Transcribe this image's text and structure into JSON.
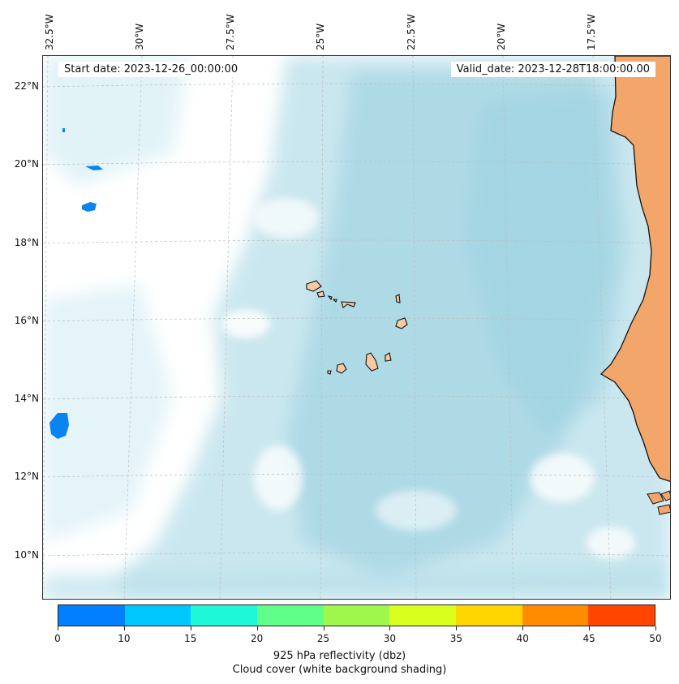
{
  "map": {
    "start_date": "Start date: 2023-12-26_00:00:00",
    "valid_date": "Valid_date: 2023-12-28T18:00:00.00",
    "lon_labels": [
      "32.5°W",
      "30°W",
      "27.5°W",
      "25°W",
      "22.5°W",
      "20°W",
      "17.5°W"
    ],
    "lat_labels": [
      "22°N",
      "20°N",
      "18°N",
      "16°N",
      "14°N",
      "12°N",
      "10°N"
    ],
    "colors": {
      "cloud": "#a9d8e6",
      "land": "#f3a66a",
      "island_fill": "#f7c9a4",
      "reflectivity_blue": "#0a84f0",
      "grid": "#bbbbbb"
    }
  },
  "colorbar": {
    "ticks": [
      "0",
      "10",
      "15",
      "20",
      "25",
      "30",
      "35",
      "40",
      "45",
      "50"
    ],
    "colors": [
      "#0080ff",
      "#00c8ff",
      "#1ef7d8",
      "#60ff8a",
      "#9ef74a",
      "#d8ff1e",
      "#ffd600",
      "#ff8c00",
      "#ff4500"
    ],
    "label_line1": "925 hPa reflectivity (dbz)",
    "label_line2": "Cloud cover (white background shading)"
  }
}
